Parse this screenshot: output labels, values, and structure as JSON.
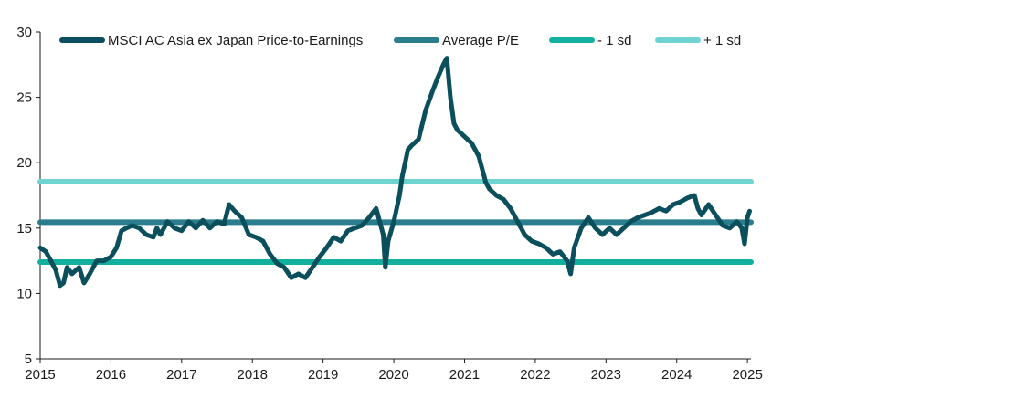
{
  "chart_data": {
    "type": "line",
    "title": "",
    "xlabel": "",
    "ylabel": "",
    "xlim": [
      2015,
      2025.05
    ],
    "ylim": [
      5,
      30
    ],
    "x_ticks": [
      "2015",
      "2016",
      "2017",
      "2018",
      "2019",
      "2020",
      "2021",
      "2022",
      "2023",
      "2024",
      "2025"
    ],
    "y_ticks": [
      "5",
      "10",
      "15",
      "20",
      "25",
      "30"
    ],
    "grid": false,
    "legend_position": "top",
    "colors": {
      "pe": "#0b4f5c",
      "average": "#2a7d8c",
      "minus_sd": "#13b0a0",
      "plus_sd": "#6fd3cf"
    },
    "legend": [
      {
        "key": "pe",
        "label": "MSCI AC Asia ex Japan Price-to-Earnings"
      },
      {
        "key": "average",
        "label": "Average P/E"
      },
      {
        "key": "minus_sd",
        "label": "- 1 sd"
      },
      {
        "key": "plus_sd",
        "label": "+ 1 sd"
      }
    ],
    "series": [
      {
        "key": "pe",
        "name": "MSCI AC Asia ex Japan Price-to-Earnings",
        "x": [
          2015.0,
          2015.08,
          2015.15,
          2015.22,
          2015.28,
          2015.33,
          2015.38,
          2015.45,
          2015.55,
          2015.62,
          2015.7,
          2015.8,
          2015.9,
          2016.0,
          2016.08,
          2016.15,
          2016.22,
          2016.3,
          2016.4,
          2016.5,
          2016.6,
          2016.65,
          2016.7,
          2016.8,
          2016.9,
          2017.0,
          2017.1,
          2017.2,
          2017.3,
          2017.4,
          2017.5,
          2017.6,
          2017.67,
          2017.75,
          2017.85,
          2017.95,
          2018.05,
          2018.15,
          2018.25,
          2018.35,
          2018.45,
          2018.55,
          2018.65,
          2018.75,
          2018.85,
          2018.95,
          2019.05,
          2019.15,
          2019.25,
          2019.35,
          2019.45,
          2019.55,
          2019.65,
          2019.75,
          2019.85,
          2019.88,
          2019.92,
          2020.0,
          2020.08,
          2020.12,
          2020.16,
          2020.2,
          2020.25,
          2020.35,
          2020.45,
          2020.55,
          2020.62,
          2020.7,
          2020.75,
          2020.8,
          2020.85,
          2020.9,
          2021.0,
          2021.1,
          2021.2,
          2021.3,
          2021.35,
          2021.45,
          2021.55,
          2021.65,
          2021.75,
          2021.85,
          2021.95,
          2022.05,
          2022.15,
          2022.25,
          2022.35,
          2022.45,
          2022.5,
          2022.55,
          2022.65,
          2022.75,
          2022.85,
          2022.95,
          2023.05,
          2023.15,
          2023.25,
          2023.35,
          2023.45,
          2023.55,
          2023.65,
          2023.75,
          2023.85,
          2023.95,
          2024.05,
          2024.15,
          2024.25,
          2024.3,
          2024.35,
          2024.45,
          2024.55,
          2024.65,
          2024.75,
          2024.85,
          2024.92,
          2024.96,
          2025.0,
          2025.03
        ],
        "values": [
          13.5,
          13.2,
          12.5,
          11.8,
          10.6,
          10.8,
          12.0,
          11.5,
          12.0,
          10.8,
          11.5,
          12.5,
          12.5,
          12.8,
          13.5,
          14.8,
          15.0,
          15.2,
          15.0,
          14.5,
          14.3,
          15.0,
          14.5,
          15.5,
          15.0,
          14.8,
          15.5,
          15.0,
          15.6,
          15.0,
          15.5,
          15.3,
          16.8,
          16.3,
          15.8,
          14.5,
          14.3,
          14.0,
          13.0,
          12.3,
          12.0,
          11.2,
          11.5,
          11.2,
          12.0,
          12.8,
          13.5,
          14.3,
          14.0,
          14.8,
          15.0,
          15.2,
          15.8,
          16.5,
          14.5,
          12.0,
          14.0,
          15.5,
          17.5,
          19.0,
          20.0,
          21.0,
          21.3,
          21.8,
          24.0,
          25.5,
          26.5,
          27.5,
          28.0,
          25.0,
          23.0,
          22.5,
          22.0,
          21.5,
          20.5,
          18.5,
          18.0,
          17.5,
          17.2,
          16.5,
          15.5,
          14.5,
          14.0,
          13.8,
          13.5,
          13.0,
          13.2,
          12.5,
          11.5,
          13.5,
          15.0,
          15.8,
          15.0,
          14.5,
          15.0,
          14.5,
          15.0,
          15.5,
          15.8,
          16.0,
          16.2,
          16.5,
          16.3,
          16.8,
          17.0,
          17.3,
          17.5,
          16.5,
          16.0,
          16.8,
          16.0,
          15.2,
          15.0,
          15.5,
          15.0,
          13.8,
          15.8,
          16.3
        ]
      },
      {
        "key": "average",
        "name": "Average P/E",
        "x": [
          2015.0,
          2025.05
        ],
        "values": [
          15.45,
          15.45
        ]
      },
      {
        "key": "minus_sd",
        "name": "- 1 sd",
        "x": [
          2015.0,
          2025.05
        ],
        "values": [
          12.4,
          12.4
        ]
      },
      {
        "key": "plus_sd",
        "name": "+ 1 sd",
        "x": [
          2015.0,
          2025.05
        ],
        "values": [
          18.55,
          18.55
        ]
      }
    ]
  }
}
